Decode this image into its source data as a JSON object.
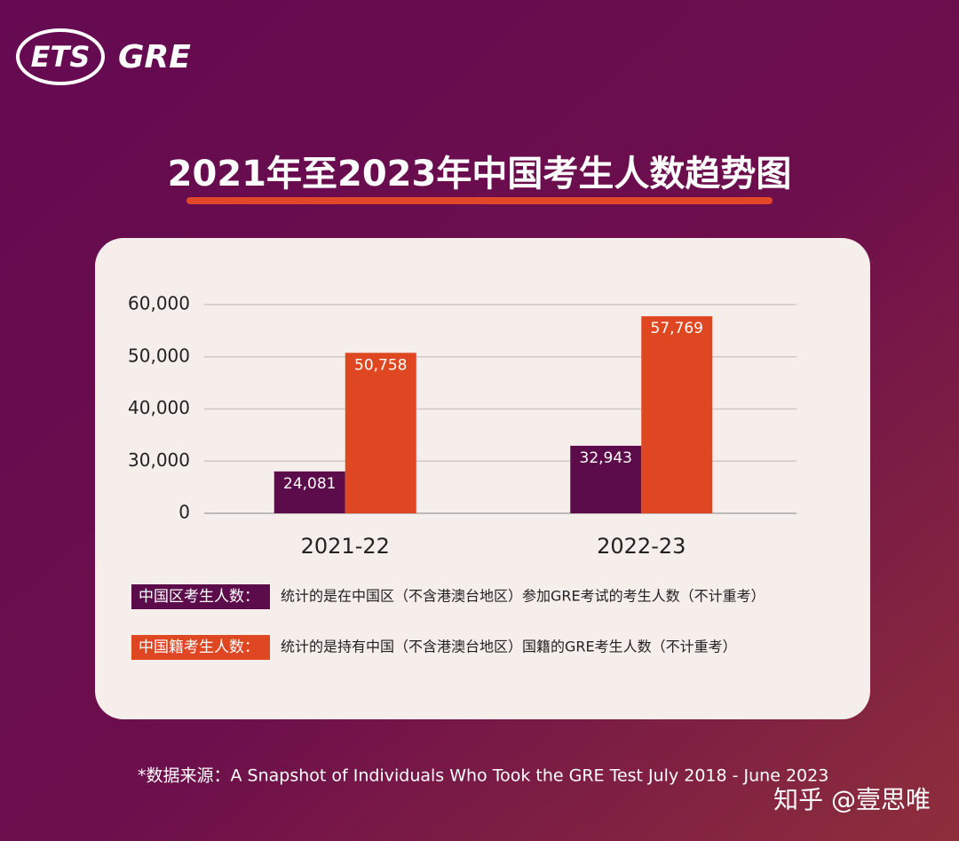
{
  "logo": {
    "brand": "ETS",
    "product": "GRE"
  },
  "chart_data": {
    "type": "bar",
    "title": "2021年至2023年中国考生人数趋势图",
    "categories": [
      "2021-22",
      "2022-23"
    ],
    "series": [
      {
        "name": "中国区考生人数：",
        "color": "#5c0c4b",
        "description": "统计的是在中国区（不含港澳台地区）参加GRE考试的考生人数（不计重考）",
        "values": [
          24081,
          32943
        ],
        "value_labels": [
          "24,081",
          "32,943"
        ]
      },
      {
        "name": "中国籍考生人数：",
        "color": "#df4722",
        "description": "统计的是持有中国（不含港澳台地区）国籍的GRE考生人数（不计重考）",
        "values": [
          50758,
          57769
        ],
        "value_labels": [
          "50,758",
          "57,769"
        ]
      }
    ],
    "ylim": [
      0,
      60000
    ],
    "yticks": [
      0,
      {
        "value": 30000,
        "label": "30,000"
      },
      {
        "value": 40000,
        "label": "40,000"
      },
      {
        "value": 50000,
        "label": "50,000"
      },
      {
        "value": 60000,
        "label": "60,000"
      }
    ],
    "grid": true
  },
  "source": "*数据来源：A Snapshot of Individuals Who Took the GRE Test July 2018 - June 2023",
  "watermark": "知乎 @壹思唯"
}
